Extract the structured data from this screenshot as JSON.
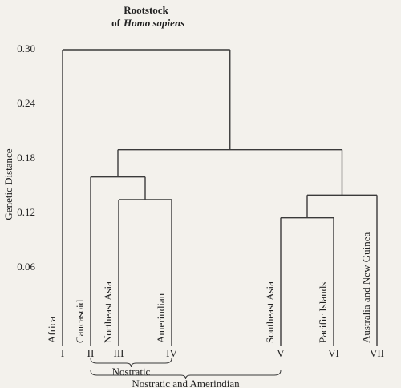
{
  "chart_data": {
    "type": "dendrogram",
    "title": "Rootstock",
    "subtitle": [
      "of",
      "Homo sapiens"
    ],
    "ylabel": "Genetic Distance",
    "ylim": [
      0,
      0.3
    ],
    "yticks": [
      {
        "value": 0.3,
        "label": "0.30"
      },
      0.24,
      0.18,
      0.12,
      0.06
    ],
    "color": "#3a3a3a",
    "leaves": [
      {
        "label": "Africa",
        "group": "I"
      },
      {
        "label": "Caucasoid",
        "group": "II"
      },
      {
        "label": "Northeast Asia",
        "group": "III"
      },
      {
        "label": "Amerindian",
        "group": "IV"
      },
      {
        "label": "Southeast Asia",
        "group": "V"
      },
      {
        "label": "Pacific Islands",
        "group": "VI"
      },
      {
        "label": "Australia and New Guinea",
        "group": "VII"
      }
    ],
    "merges": [
      {
        "left": 2,
        "right": 3,
        "height": 0.135
      },
      {
        "left": 1,
        "right": 7,
        "height": 0.16
      },
      {
        "left": 4,
        "right": 5,
        "height": 0.115
      },
      {
        "left": 9,
        "right": 6,
        "height": 0.14
      },
      {
        "left": 8,
        "right": 10,
        "height": 0.19
      },
      {
        "left": 0,
        "right": 11,
        "height": 0.3
      }
    ],
    "brackets": [
      {
        "label": "Nostratic",
        "from": 1,
        "to": 3
      },
      {
        "label": "Nostratic and Amerindian",
        "from": 1,
        "to": 4
      }
    ]
  }
}
